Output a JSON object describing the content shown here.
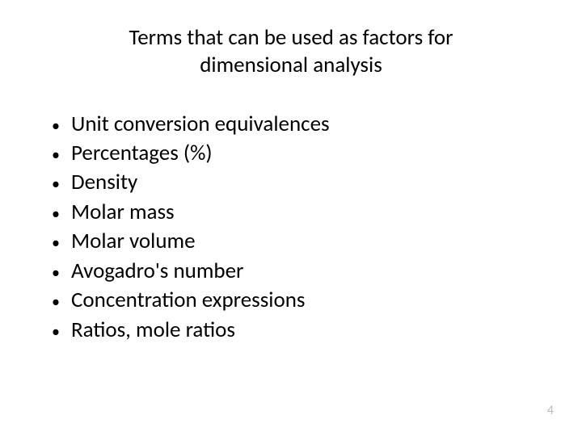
{
  "slide": {
    "title": "Terms that can be used as factors for dimensional analysis",
    "bullets": [
      "Unit conversion equivalences",
      "Percentages (%)",
      "Density",
      "Molar mass",
      "Molar volume",
      "Avogadro's number",
      "Concentration expressions",
      "Ratios, mole ratios"
    ],
    "pageNumber": "4"
  },
  "style": {
    "background_color": "#ffffff",
    "title_fontsize": 27,
    "title_color": "#000000",
    "bullet_fontsize": 27,
    "bullet_color": "#000000",
    "bullet_marker": "•",
    "page_number_color": "#b8b8b8",
    "page_number_fontsize": 16,
    "font_family": "Calibri"
  }
}
